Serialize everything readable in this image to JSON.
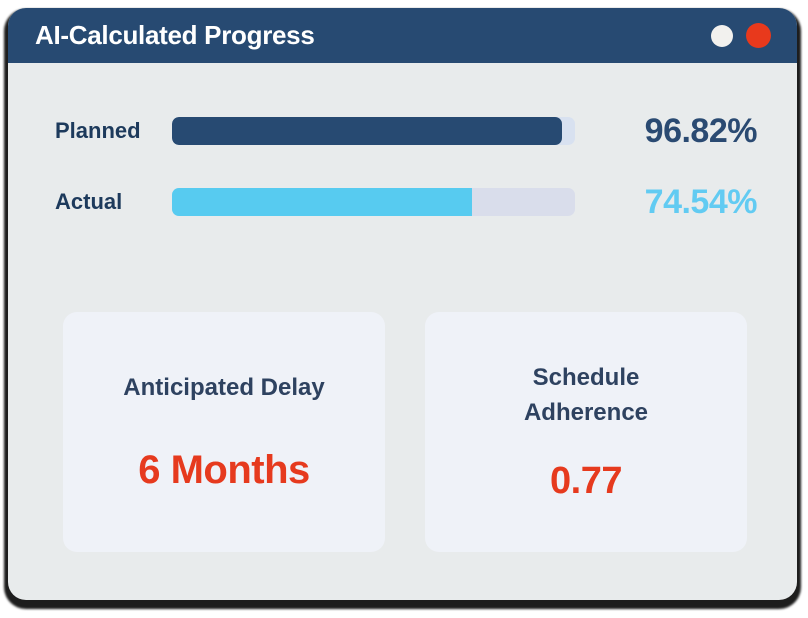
{
  "window": {
    "title": "AI-Calculated Progress",
    "controls": {
      "minimize_color": "#F2F1EE",
      "close_color": "#E8391C"
    }
  },
  "progress": {
    "rows": [
      {
        "label": "Planned",
        "value_text": "96.82%",
        "percent": 96.82,
        "fill_color": "#274A72",
        "track_color": "#D8E1F0",
        "value_color": "#2A4A72"
      },
      {
        "label": "Actual",
        "value_text": "74.54%",
        "percent": 74.54,
        "fill_color": "#57CBF0",
        "track_color": "#D9DDEB",
        "value_color": "#62CBF2"
      }
    ]
  },
  "metrics": [
    {
      "title": "Anticipated Delay",
      "value": "6 Months",
      "value_color": "#E63A1E"
    },
    {
      "title": "Schedule Adherence",
      "value": "0.77",
      "value_color": "#E63A1E"
    }
  ],
  "colors": {
    "header_bg": "#274A72",
    "body_bg": "#E8EBEC",
    "card_bg": "#EFF2F8",
    "accent_red": "#E63A1E",
    "accent_blue": "#57CBF0",
    "accent_navy": "#274A72",
    "outline_shadow": "#0A0A0A",
    "page_bg": "#FFFFFF"
  }
}
